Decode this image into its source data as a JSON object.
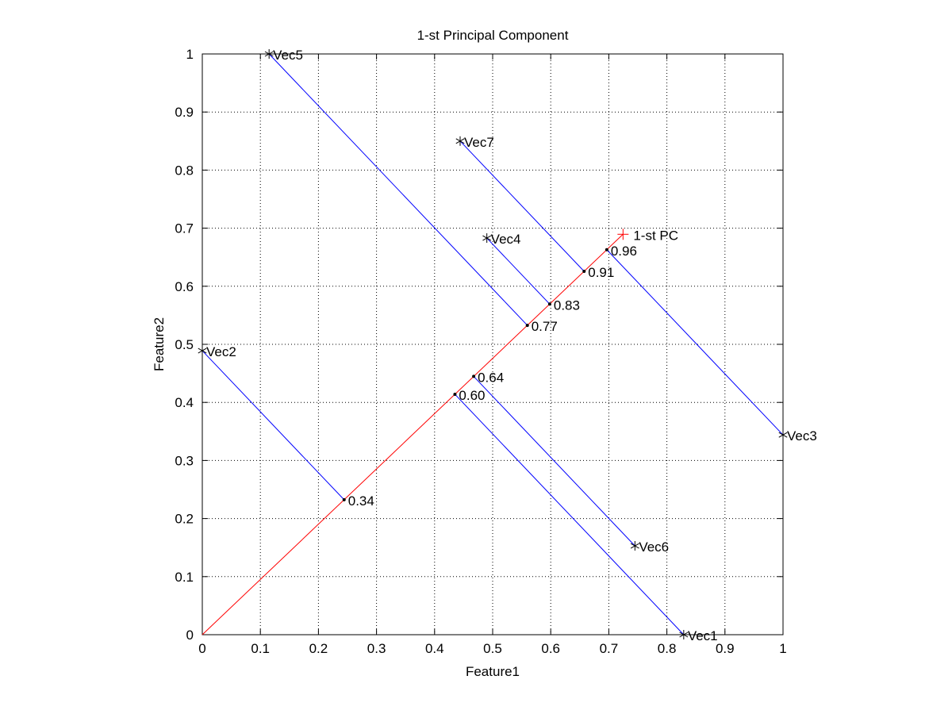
{
  "chart_data": {
    "type": "scatter",
    "title": "1-st Principal Component",
    "xlabel": "Feature1",
    "ylabel": "Feature2",
    "xlim": [
      0,
      1
    ],
    "ylim": [
      0,
      1
    ],
    "grid": true,
    "xticks": [
      "0",
      "0.1",
      "0.2",
      "0.3",
      "0.4",
      "0.5",
      "0.6",
      "0.7",
      "0.8",
      "0.9",
      "1"
    ],
    "yticks": [
      "0",
      "0.1",
      "0.2",
      "0.3",
      "0.4",
      "0.5",
      "0.6",
      "0.7",
      "0.8",
      "0.9",
      "1"
    ],
    "points": [
      {
        "label": "Vec1",
        "x": 0.829,
        "y": 0.0,
        "proj_label": "0.60"
      },
      {
        "label": "Vec2",
        "x": 0.0,
        "y": 0.489,
        "proj_label": "0.34"
      },
      {
        "label": "Vec3",
        "x": 1.0,
        "y": 0.344,
        "proj_label": "0.96"
      },
      {
        "label": "Vec4",
        "x": 0.49,
        "y": 0.683,
        "proj_label": "0.83"
      },
      {
        "label": "Vec5",
        "x": 0.115,
        "y": 1.0,
        "proj_label": "0.77"
      },
      {
        "label": "Vec6",
        "x": 0.745,
        "y": 0.153,
        "proj_label": "0.64"
      },
      {
        "label": "Vec7",
        "x": 0.444,
        "y": 0.85,
        "proj_label": "0.91"
      }
    ],
    "pc": {
      "label": "1-st PC",
      "x": 0.7245,
      "y": 0.6895
    },
    "colors": {
      "pc_line": "#ff0000",
      "projection_lines": "#0000ff",
      "points": "#000000"
    }
  }
}
